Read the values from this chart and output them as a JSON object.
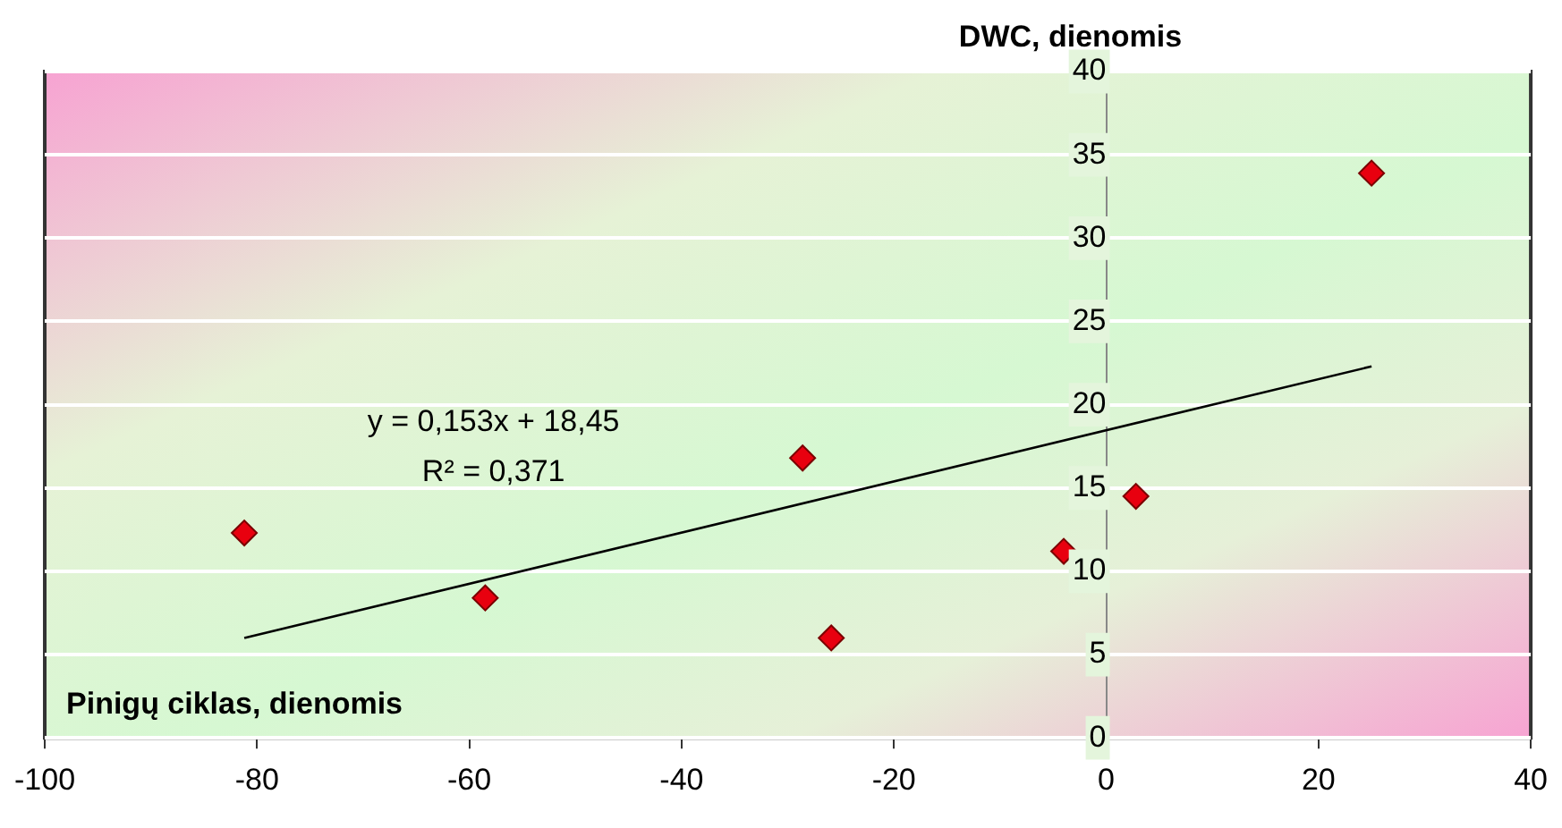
{
  "chart_data": {
    "type": "scatter",
    "xlabel": "Pinigų ciklas, dienomis",
    "ylabel": "DWC, dienomis",
    "annotations": [
      "y = 0,153x + 18,45",
      "R² = 0,371"
    ],
    "xlim": [
      -100,
      40
    ],
    "ylim": [
      0,
      40
    ],
    "xticks": [
      -100,
      -80,
      -60,
      -40,
      -20,
      0,
      20,
      40
    ],
    "yticks": [
      0,
      5,
      10,
      15,
      20,
      25,
      30,
      35,
      40
    ],
    "grid": "y",
    "marker": "diamond",
    "series": [
      {
        "color": "#e8000f",
        "x": [
          -81.2,
          -58.5,
          -28.6,
          -25.9,
          -4,
          2.8,
          25
        ],
        "values": [
          12.3,
          8.4,
          16.8,
          6,
          11.2,
          14.5,
          33.9
        ]
      },
      {
        "type": "line",
        "color": "#000000",
        "marker": "none",
        "x": [
          -81.2,
          25
        ],
        "values": [
          6.0,
          22.3
        ]
      }
    ]
  }
}
